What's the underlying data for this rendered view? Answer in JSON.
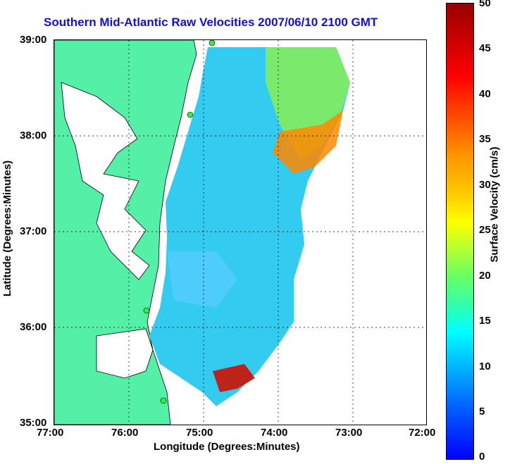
{
  "title": "Southern Mid-Atlantic Raw Velocities 2007/06/10 2100 GMT",
  "axes": {
    "xlabel": "Longitude (Degrees:Minutes)",
    "ylabel": "Latitude (Degrees:Minutes)",
    "xticks": [
      "77:00",
      "76:00",
      "75:00",
      "74:00",
      "73:00",
      "72:00"
    ],
    "yticks": [
      "39:00",
      "38:00",
      "37:00",
      "36:00",
      "35:00"
    ]
  },
  "colorbar": {
    "label": "Surface Velocity (cm/s)",
    "ticks": [
      "50",
      "45",
      "40",
      "35",
      "30",
      "25",
      "20",
      "15",
      "10",
      "5",
      "0"
    ],
    "range": [
      0,
      50
    ]
  },
  "colors": {
    "land": "#55f0a8",
    "water": "#ffffff",
    "title": "#1010d8"
  }
}
